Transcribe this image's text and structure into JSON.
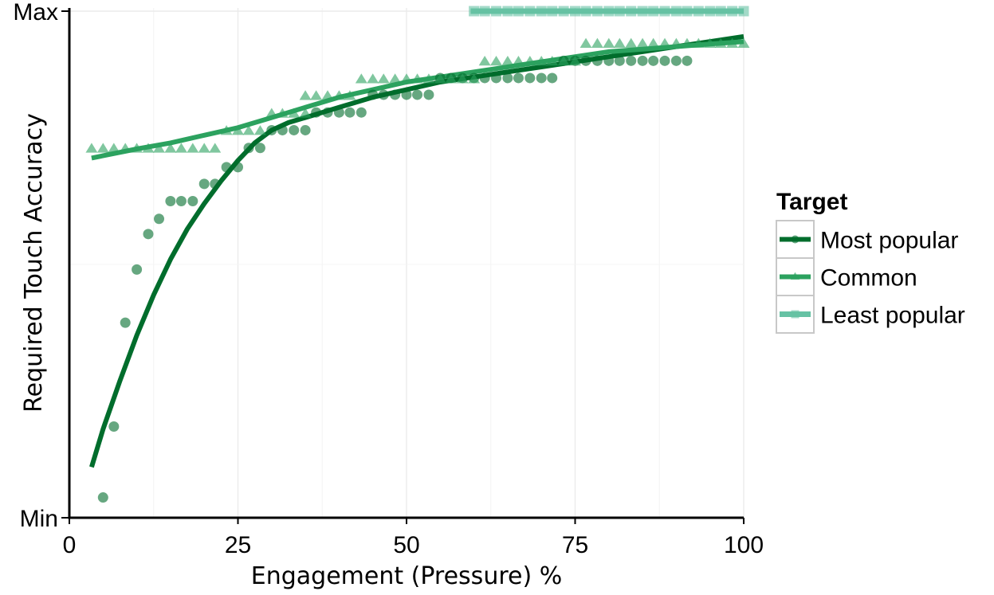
{
  "chart_data": {
    "type": "scatter",
    "title": "",
    "xlabel": "Engagement (Pressure) %",
    "ylabel": "Required Touch Accuracy",
    "xlim": [
      0,
      100
    ],
    "ylim": [
      0,
      1
    ],
    "x_ticks": [
      0,
      25,
      50,
      75,
      100
    ],
    "x_tick_labels": [
      "0",
      "25",
      "50",
      "75",
      "100"
    ],
    "y_ticks": [
      0,
      1
    ],
    "y_tick_labels": [
      "Min",
      "Max"
    ],
    "grid": true,
    "legend": {
      "title": "Target",
      "position": "right"
    },
    "series": [
      {
        "name": "Most popular",
        "color": "#006d2c",
        "marker": "circle",
        "points": [
          [
            5,
            0.04
          ],
          [
            6.6,
            0.18
          ],
          [
            8.3,
            0.385
          ],
          [
            10,
            0.49
          ],
          [
            11.7,
            0.56
          ],
          [
            13.3,
            0.59
          ],
          [
            15,
            0.625
          ],
          [
            16.6,
            0.625
          ],
          [
            18.3,
            0.625
          ],
          [
            20,
            0.659
          ],
          [
            21.6,
            0.659
          ],
          [
            23.3,
            0.692
          ],
          [
            25,
            0.692
          ],
          [
            26.6,
            0.73
          ],
          [
            28.3,
            0.73
          ],
          [
            30,
            0.765
          ],
          [
            31.6,
            0.765
          ],
          [
            33.3,
            0.765
          ],
          [
            35,
            0.765
          ],
          [
            36.6,
            0.8
          ],
          [
            38.3,
            0.8
          ],
          [
            40,
            0.8
          ],
          [
            41.6,
            0.8
          ],
          [
            43.3,
            0.8
          ],
          [
            45,
            0.835
          ],
          [
            46.6,
            0.835
          ],
          [
            48.3,
            0.835
          ],
          [
            50,
            0.835
          ],
          [
            51.6,
            0.835
          ],
          [
            53.3,
            0.835
          ],
          [
            55,
            0.868
          ],
          [
            56.6,
            0.868
          ],
          [
            58.3,
            0.868
          ],
          [
            60,
            0.868
          ],
          [
            61.6,
            0.868
          ],
          [
            63.3,
            0.868
          ],
          [
            65,
            0.868
          ],
          [
            66.6,
            0.868
          ],
          [
            68.3,
            0.868
          ],
          [
            70,
            0.868
          ],
          [
            71.6,
            0.868
          ],
          [
            73.3,
            0.902
          ],
          [
            75,
            0.902
          ],
          [
            76.6,
            0.902
          ],
          [
            78.3,
            0.902
          ],
          [
            80,
            0.902
          ],
          [
            81.6,
            0.902
          ],
          [
            83.3,
            0.902
          ],
          [
            85,
            0.902
          ],
          [
            86.6,
            0.902
          ],
          [
            88.3,
            0.902
          ],
          [
            90,
            0.902
          ],
          [
            91.6,
            0.902
          ]
        ],
        "fit": [
          [
            3.3,
            0.1
          ],
          [
            5,
            0.175
          ],
          [
            7.5,
            0.27
          ],
          [
            10,
            0.36
          ],
          [
            12.5,
            0.44
          ],
          [
            15,
            0.51
          ],
          [
            17.5,
            0.57
          ],
          [
            20,
            0.62
          ],
          [
            22.5,
            0.665
          ],
          [
            25,
            0.705
          ],
          [
            27.5,
            0.74
          ],
          [
            30,
            0.765
          ],
          [
            32.5,
            0.78
          ],
          [
            35,
            0.79
          ],
          [
            40,
            0.81
          ],
          [
            45,
            0.83
          ],
          [
            50,
            0.845
          ],
          [
            55,
            0.86
          ],
          [
            60,
            0.87
          ],
          [
            65,
            0.88
          ],
          [
            70,
            0.89
          ],
          [
            75,
            0.9
          ],
          [
            80,
            0.91
          ],
          [
            85,
            0.92
          ],
          [
            90,
            0.93
          ],
          [
            95,
            0.94
          ],
          [
            100,
            0.95
          ]
        ]
      },
      {
        "name": "Common",
        "color": "#2ca25f",
        "marker": "triangle",
        "points": [
          [
            3.3,
            0.728
          ],
          [
            5,
            0.728
          ],
          [
            6.6,
            0.728
          ],
          [
            8.3,
            0.728
          ],
          [
            10,
            0.728
          ],
          [
            11.7,
            0.728
          ],
          [
            13.3,
            0.728
          ],
          [
            15,
            0.728
          ],
          [
            16.6,
            0.728
          ],
          [
            18.3,
            0.728
          ],
          [
            20,
            0.728
          ],
          [
            21.6,
            0.728
          ],
          [
            23.3,
            0.763
          ],
          [
            25,
            0.763
          ],
          [
            26.6,
            0.763
          ],
          [
            28.3,
            0.763
          ],
          [
            30,
            0.797
          ],
          [
            31.6,
            0.797
          ],
          [
            33.3,
            0.797
          ],
          [
            35,
            0.797
          ],
          [
            35,
            0.832
          ],
          [
            36.6,
            0.832
          ],
          [
            38.3,
            0.832
          ],
          [
            40,
            0.832
          ],
          [
            41.6,
            0.832
          ],
          [
            43.3,
            0.865
          ],
          [
            45,
            0.865
          ],
          [
            46.6,
            0.865
          ],
          [
            48.3,
            0.865
          ],
          [
            50,
            0.865
          ],
          [
            51.6,
            0.865
          ],
          [
            53.3,
            0.865
          ],
          [
            55,
            0.865
          ],
          [
            56.6,
            0.865
          ],
          [
            58.3,
            0.865
          ],
          [
            60,
            0.865
          ],
          [
            61.6,
            0.9
          ],
          [
            63.3,
            0.9
          ],
          [
            65,
            0.9
          ],
          [
            66.6,
            0.9
          ],
          [
            68.3,
            0.9
          ],
          [
            70,
            0.9
          ],
          [
            71.6,
            0.9
          ],
          [
            73.3,
            0.9
          ],
          [
            75,
            0.9
          ],
          [
            76.6,
            0.935
          ],
          [
            78.3,
            0.935
          ],
          [
            80,
            0.935
          ],
          [
            81.6,
            0.935
          ],
          [
            83.3,
            0.935
          ],
          [
            85,
            0.935
          ],
          [
            86.6,
            0.935
          ],
          [
            88.3,
            0.935
          ],
          [
            90,
            0.935
          ],
          [
            91.6,
            0.935
          ],
          [
            93.3,
            0.935
          ],
          [
            95,
            0.935
          ],
          [
            96.6,
            0.935
          ],
          [
            98.3,
            0.935
          ],
          [
            100,
            0.935
          ]
        ],
        "fit": [
          [
            3.3,
            0.71
          ],
          [
            10,
            0.728
          ],
          [
            15,
            0.74
          ],
          [
            20,
            0.755
          ],
          [
            25,
            0.77
          ],
          [
            30,
            0.79
          ],
          [
            35,
            0.81
          ],
          [
            40,
            0.83
          ],
          [
            45,
            0.845
          ],
          [
            50,
            0.86
          ],
          [
            55,
            0.87
          ],
          [
            60,
            0.88
          ],
          [
            65,
            0.89
          ],
          [
            70,
            0.9
          ],
          [
            75,
            0.91
          ],
          [
            80,
            0.92
          ],
          [
            85,
            0.925
          ],
          [
            90,
            0.93
          ],
          [
            95,
            0.935
          ],
          [
            100,
            0.94
          ]
        ]
      },
      {
        "name": "Least popular",
        "color": "#66c2a4",
        "marker": "square",
        "points": [
          [
            60,
            1
          ],
          [
            61.6,
            1
          ],
          [
            63.3,
            1
          ],
          [
            65,
            1
          ],
          [
            66.6,
            1
          ],
          [
            68.3,
            1
          ],
          [
            70,
            1
          ],
          [
            71.6,
            1
          ],
          [
            73.3,
            1
          ],
          [
            75,
            1
          ],
          [
            76.6,
            1
          ],
          [
            78.3,
            1
          ],
          [
            80,
            1
          ],
          [
            81.6,
            1
          ],
          [
            83.3,
            1
          ],
          [
            85,
            1
          ],
          [
            86.6,
            1
          ],
          [
            88.3,
            1
          ],
          [
            90,
            1
          ],
          [
            91.6,
            1
          ],
          [
            93.3,
            1
          ],
          [
            95,
            1
          ],
          [
            96.6,
            1
          ],
          [
            98.3,
            1
          ],
          [
            100,
            1
          ]
        ],
        "fit": [
          [
            59.5,
            1
          ],
          [
            100,
            1
          ]
        ]
      }
    ]
  }
}
